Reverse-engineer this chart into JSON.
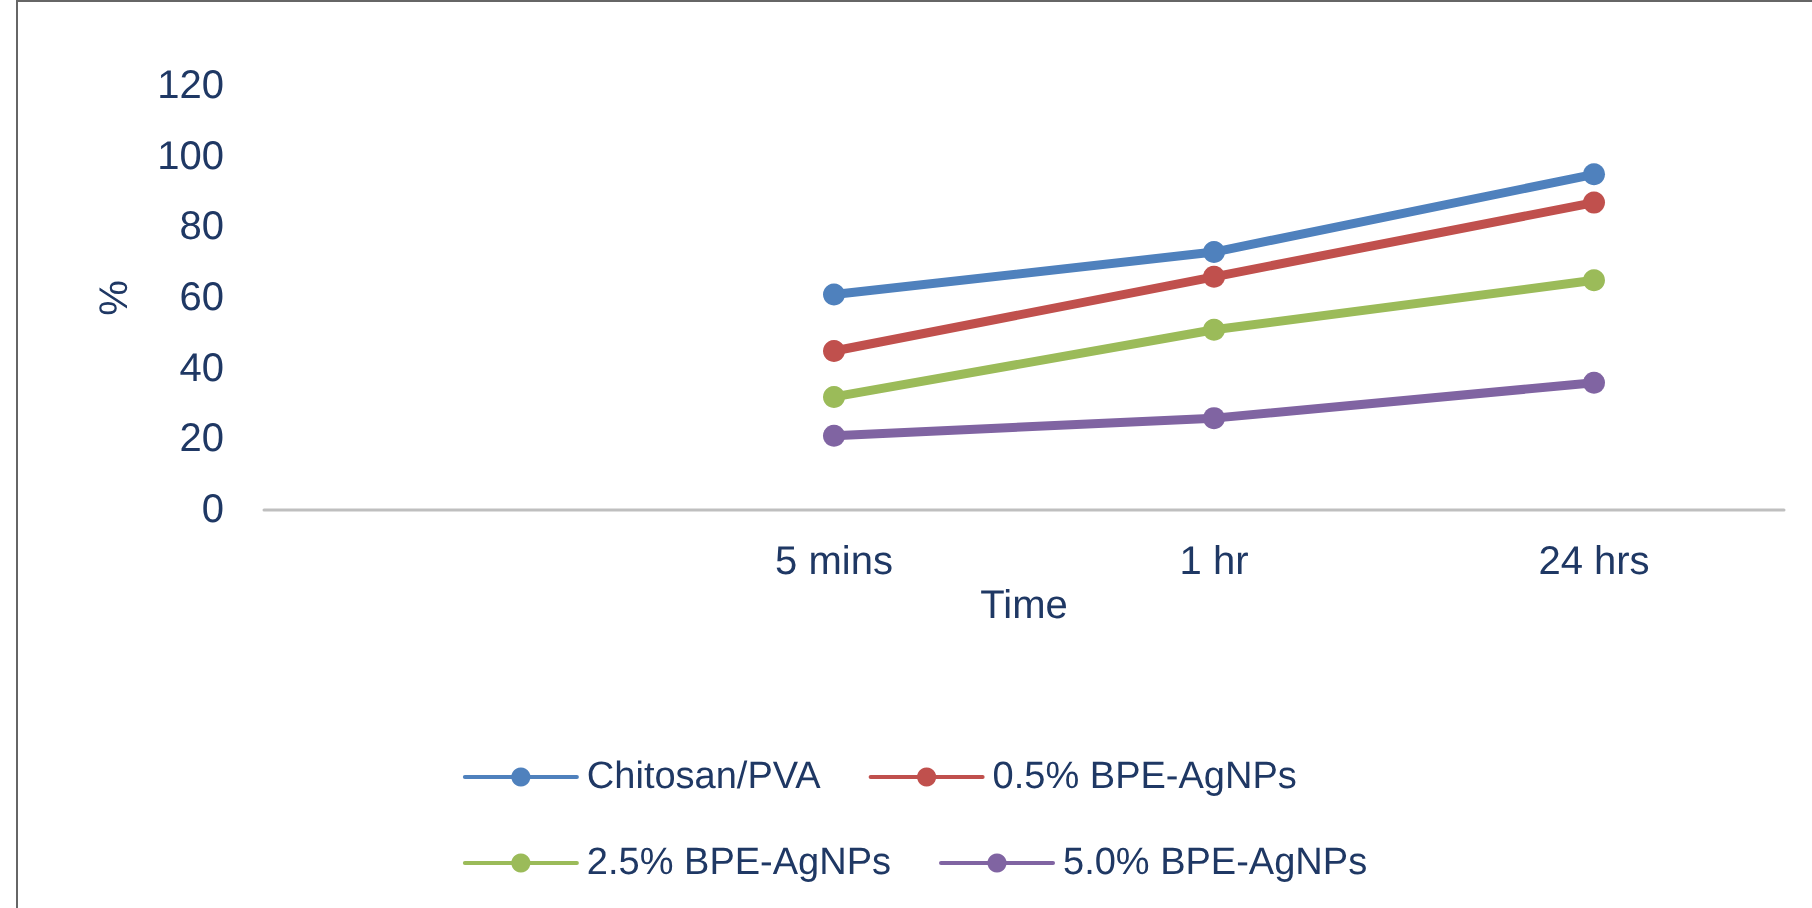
{
  "chart_data": {
    "type": "line",
    "xlabel": "Time",
    "ylabel": "%",
    "categories": [
      null,
      "5 mins",
      "1 hr",
      "24 hrs"
    ],
    "series": [
      {
        "name": "Chitosan/PVA",
        "color": "#4f81bd",
        "values": [
          null,
          61,
          73,
          95
        ]
      },
      {
        "name": "0.5% BPE-AgNPs",
        "color": "#c0504d",
        "values": [
          null,
          45,
          66,
          87
        ]
      },
      {
        "name": "2.5% BPE-AgNPs",
        "color": "#9bbb59",
        "values": [
          null,
          32,
          51,
          65
        ]
      },
      {
        "name": "5.0% BPE-AgNPs",
        "color": "#8064a2",
        "values": [
          null,
          21,
          26,
          36
        ]
      }
    ],
    "ylim": [
      0,
      120
    ],
    "yticks": [
      0,
      20,
      40,
      60,
      80,
      100,
      120
    ],
    "grid": false,
    "legend": "bottom",
    "marker": "circle",
    "line_style": "solid"
  }
}
